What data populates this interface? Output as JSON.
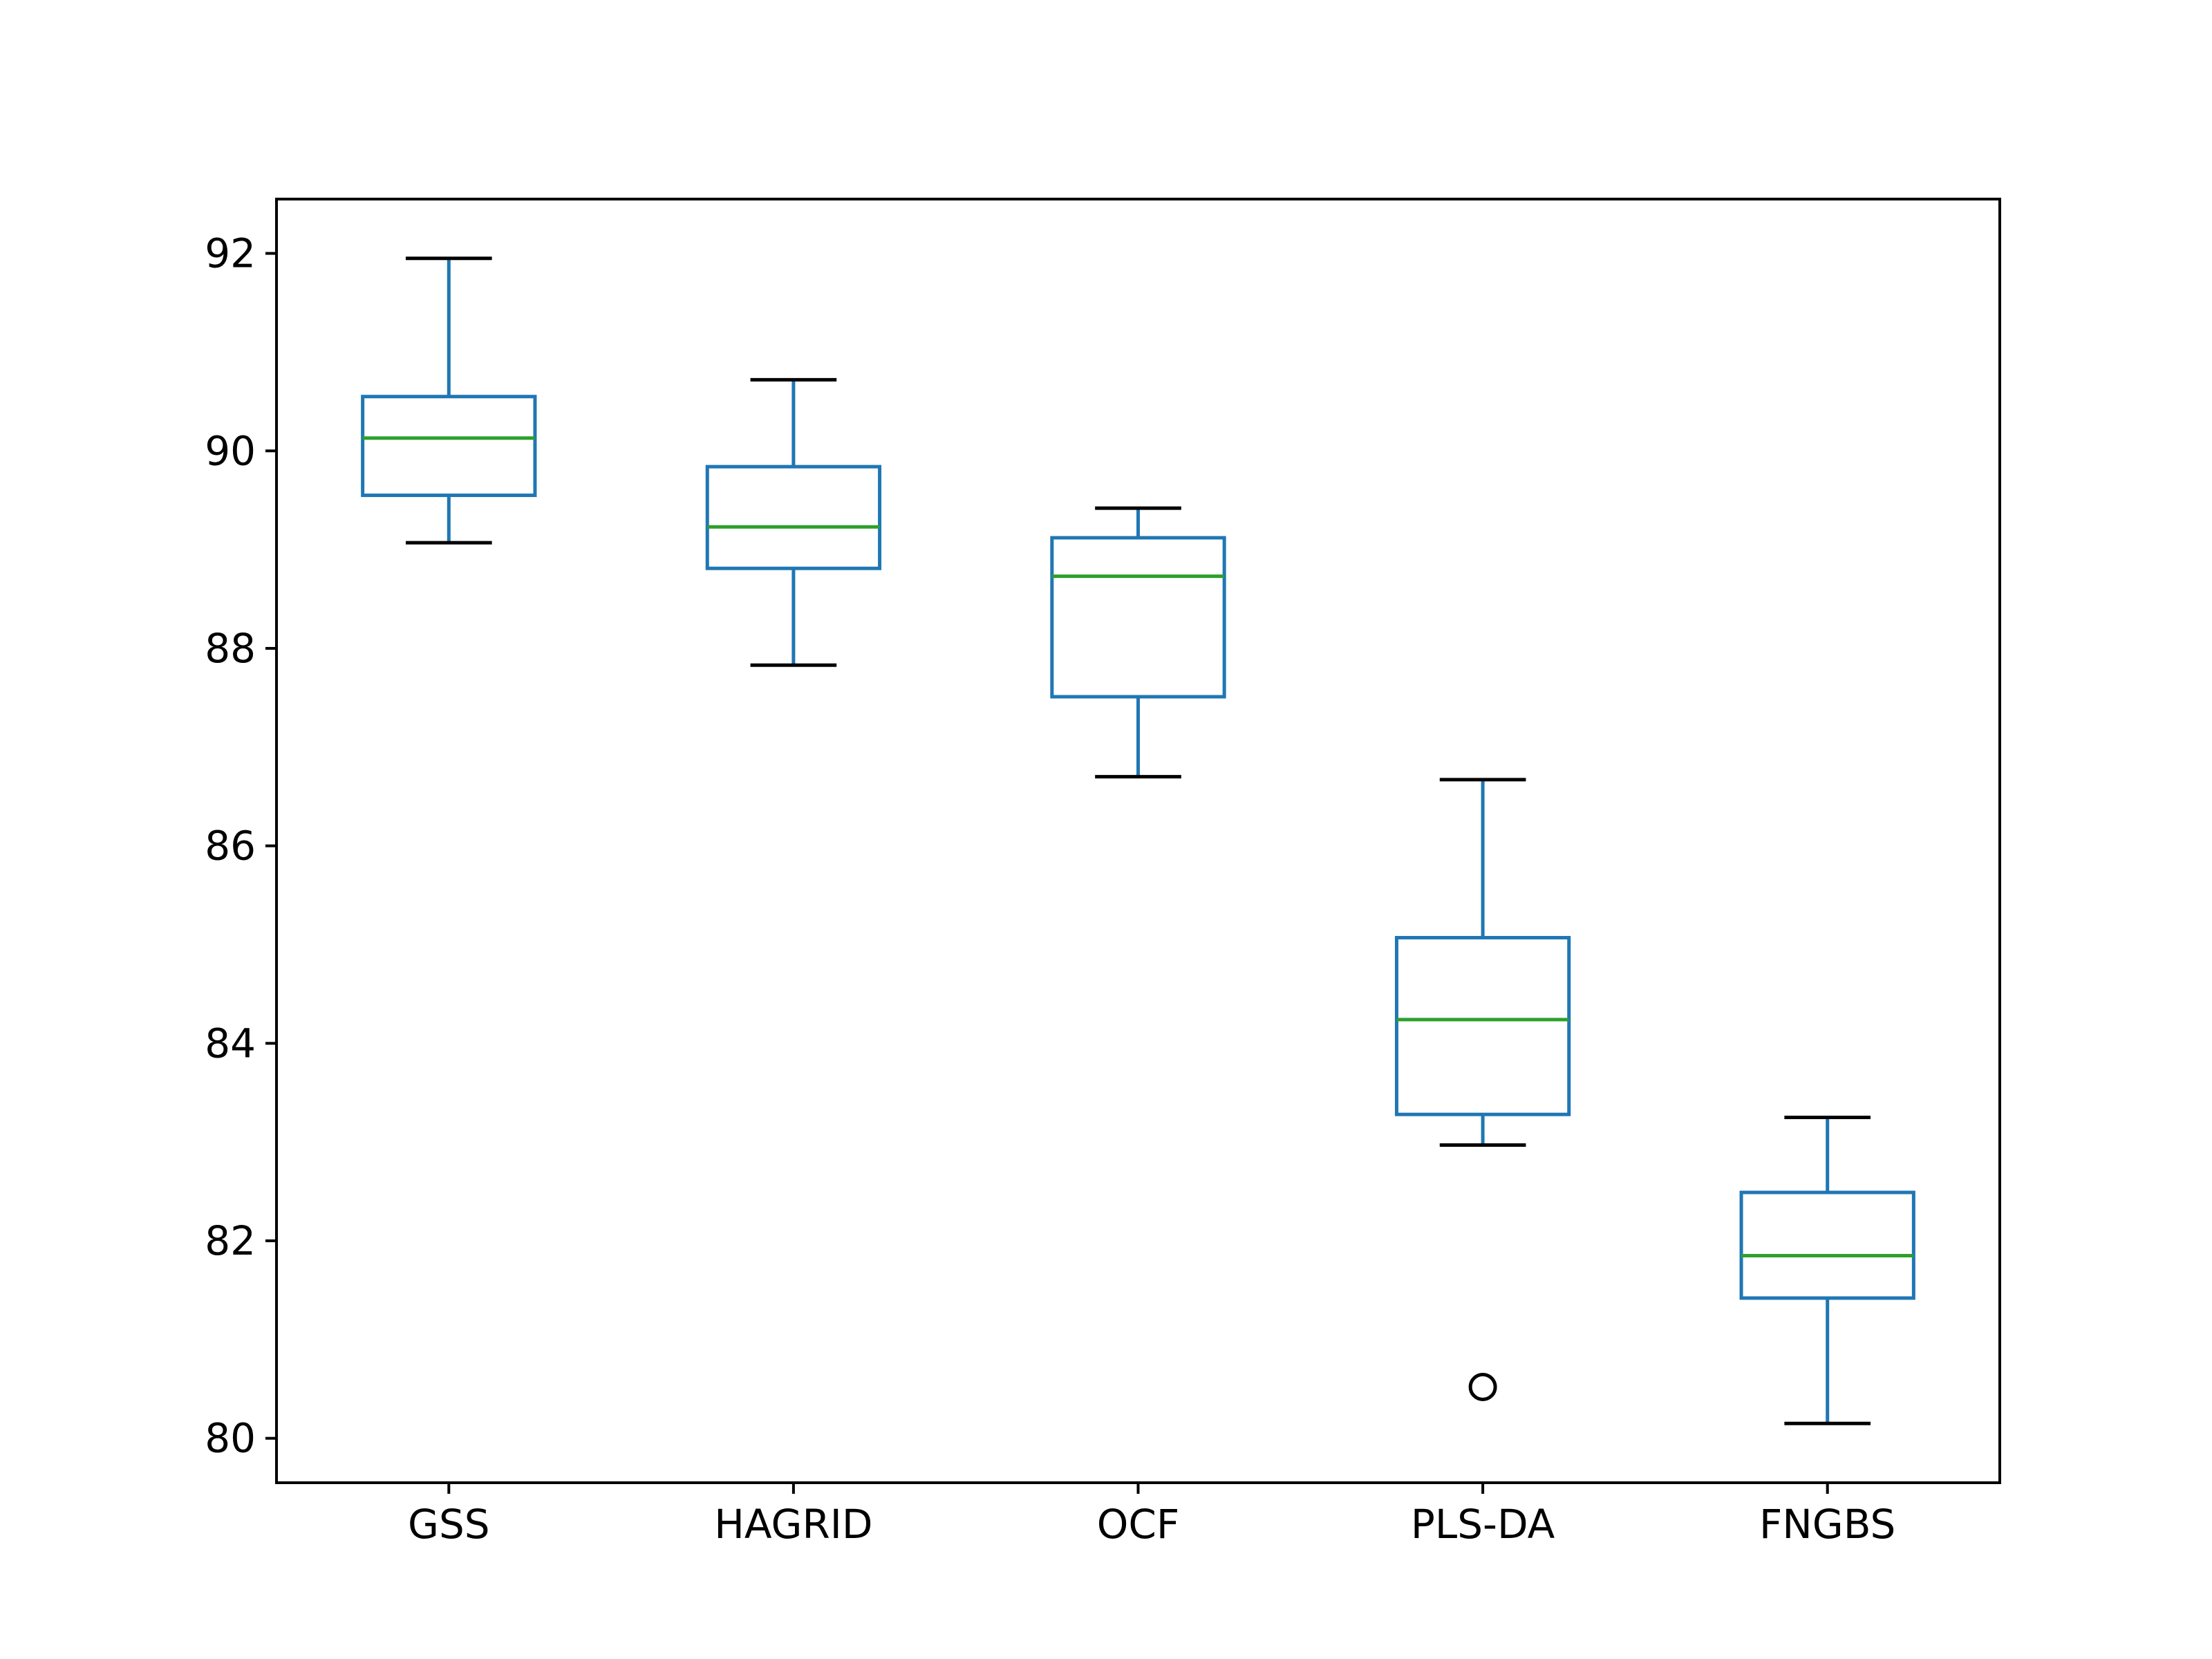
{
  "chart_data": {
    "type": "boxplot",
    "categories": [
      "GSS",
      "HAGRID",
      "OCF",
      "PLS-DA",
      "FNGBS"
    ],
    "boxes": [
      {
        "label": "GSS",
        "whisker_low": 89.07,
        "q1": 89.55,
        "median": 90.13,
        "q3": 90.55,
        "whisker_high": 91.95,
        "outliers": []
      },
      {
        "label": "HAGRID",
        "whisker_low": 87.83,
        "q1": 88.81,
        "median": 89.23,
        "q3": 89.84,
        "whisker_high": 90.72,
        "outliers": []
      },
      {
        "label": "OCF",
        "whisker_low": 86.7,
        "q1": 87.51,
        "median": 88.73,
        "q3": 89.12,
        "whisker_high": 89.42,
        "outliers": []
      },
      {
        "label": "PLS-DA",
        "whisker_low": 82.97,
        "q1": 83.28,
        "median": 84.24,
        "q3": 85.07,
        "whisker_high": 86.67,
        "outliers": [
          80.52
        ]
      },
      {
        "label": "FNGBS",
        "whisker_low": 80.15,
        "q1": 81.42,
        "median": 81.85,
        "q3": 82.49,
        "whisker_high": 83.25,
        "outliers": []
      }
    ],
    "title": "",
    "xlabel": "",
    "ylabel": "",
    "ylim": [
      79.55,
      92.55
    ],
    "yticks": [
      80,
      82,
      84,
      86,
      88,
      90,
      92
    ],
    "grid": false,
    "colors": {
      "box": "#1f77b4",
      "median": "#2ca02c",
      "cap": "#000000",
      "outlier": "#000000",
      "axes": "#000000"
    }
  }
}
